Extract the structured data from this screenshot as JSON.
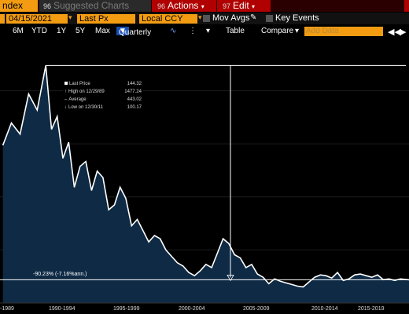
{
  "tabs": {
    "index": "ndex",
    "suggested": "Suggested Charts",
    "suggested_num": "96",
    "actions": "Actions",
    "actions_num": "96",
    "edit": "Edit",
    "edit_num": "97"
  },
  "controls": {
    "date": "04/15/2021",
    "price_field": "Last Px",
    "currency": "Local CCY",
    "mov_avgs": "Mov Avgs",
    "key_events": "Key Events"
  },
  "toolbar": {
    "periods": [
      "6M",
      "YTD",
      "1Y",
      "5Y",
      "Max"
    ],
    "frequency": "Quarterly",
    "table": "Table",
    "compare": "Compare",
    "add_data_placeholder": "Add Data"
  },
  "legend": {
    "last_label": "Last Price",
    "last_value": "144.32",
    "high_label": "High on 12/29/89",
    "high_value": "1477.24",
    "avg_label": "Average",
    "avg_value": "443.02",
    "low_label": "Low on 12/30/11",
    "low_value": "100.17"
  },
  "annotation": "-90.23% (-7.16%ann.)",
  "colors": {
    "orange": "#f39c12",
    "red": "#b00000",
    "area": "#0e2a45",
    "line": "#ffffff"
  },
  "chart_data": {
    "type": "area",
    "x_ticks": [
      "-1989",
      "1990-1994",
      "1995-1999",
      "2000-2004",
      "2005-2009",
      "2010-2014",
      "2015-2019"
    ],
    "series": [
      {
        "x": [
          1985.75,
          1986.5,
          1987.25,
          1988,
          1988.75,
          1989.5,
          1990,
          1990.5,
          1991,
          1991.5,
          1992,
          1992.5,
          1993,
          1993.5,
          1994,
          1994.5,
          1995,
          1995.5,
          1996,
          1996.5,
          1997,
          1997.5,
          1998,
          1998.5,
          1999,
          1999.5,
          2000,
          2000.5,
          2001,
          2001.5,
          2002,
          2002.5,
          2003,
          2003.5,
          2004,
          2004.5,
          2005,
          2005.5,
          2006,
          2006.5,
          2007,
          2007.5,
          2008,
          2008.5,
          2009,
          2009.5,
          2010,
          2010.5,
          2011,
          2011.5,
          2012,
          2012.5,
          2013,
          2013.5,
          2014,
          2014.5,
          2015,
          2015.5,
          2016,
          2016.5,
          2017,
          2017.5,
          2018,
          2018.5,
          2019,
          2019.5,
          2020,
          2020.5,
          2021.25
        ],
        "y": [
          980,
          1120,
          1050,
          1300,
          1200,
          1477.24,
          1080,
          1160,
          900,
          1000,
          720,
          850,
          880,
          700,
          820,
          780,
          580,
          610,
          720,
          650,
          480,
          520,
          450,
          380,
          420,
          400,
          330,
          290,
          250,
          230,
          190,
          170,
          200,
          240,
          220,
          310,
          400,
          370,
          300,
          280,
          220,
          240,
          180,
          160,
          120,
          150,
          135,
          125,
          115,
          105,
          100.17,
          130,
          160,
          175,
          170,
          155,
          190,
          140,
          150,
          175,
          180,
          170,
          160,
          175,
          145,
          150,
          140,
          150,
          144.32
        ],
        "ylim": [
          0,
          1650
        ],
        "reference_value": 144.32
      }
    ]
  }
}
